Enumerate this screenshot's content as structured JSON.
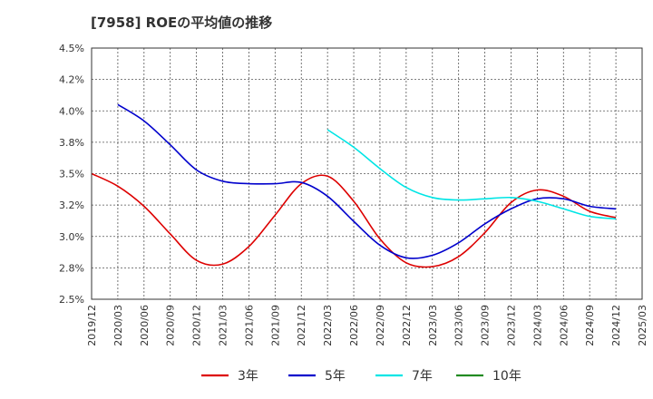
{
  "chart_data": {
    "type": "line",
    "title": "[7958]  ROEの平均値の推移",
    "xlabel": "",
    "ylabel": "",
    "ylim": [
      2.5,
      4.5
    ],
    "y_ticks": [
      "2.5%",
      "2.8%",
      "3.0%",
      "3.2%",
      "3.5%",
      "3.8%",
      "4.0%",
      "4.2%",
      "4.5%"
    ],
    "x_ticks": [
      "2019/12",
      "2020/03",
      "2020/06",
      "2020/09",
      "2020/12",
      "2021/03",
      "2021/06",
      "2021/09",
      "2021/12",
      "2022/03",
      "2022/06",
      "2022/09",
      "2022/12",
      "2023/03",
      "2023/06",
      "2023/09",
      "2023/12",
      "2024/03",
      "2024/06",
      "2024/09",
      "2024/12",
      "2025/03"
    ],
    "grid": true,
    "legend_position": "bottom",
    "series": [
      {
        "name": "3年",
        "color": "#dd0000",
        "points": [
          {
            "x": "2019/12",
            "y": 3.5
          },
          {
            "x": "2020/03",
            "y": 3.4
          },
          {
            "x": "2020/06",
            "y": 3.24
          },
          {
            "x": "2020/09",
            "y": 3.02
          },
          {
            "x": "2020/12",
            "y": 2.81
          },
          {
            "x": "2021/03",
            "y": 2.78
          },
          {
            "x": "2021/06",
            "y": 2.92
          },
          {
            "x": "2021/09",
            "y": 3.17
          },
          {
            "x": "2021/12",
            "y": 3.42
          },
          {
            "x": "2022/03",
            "y": 3.48
          },
          {
            "x": "2022/06",
            "y": 3.28
          },
          {
            "x": "2022/09",
            "y": 2.98
          },
          {
            "x": "2022/12",
            "y": 2.79
          },
          {
            "x": "2023/03",
            "y": 2.76
          },
          {
            "x": "2023/06",
            "y": 2.84
          },
          {
            "x": "2023/09",
            "y": 3.03
          },
          {
            "x": "2023/12",
            "y": 3.27
          },
          {
            "x": "2024/03",
            "y": 3.37
          },
          {
            "x": "2024/06",
            "y": 3.32
          },
          {
            "x": "2024/09",
            "y": 3.2
          },
          {
            "x": "2024/12",
            "y": 3.15
          }
        ]
      },
      {
        "name": "5年",
        "color": "#0000cc",
        "points": [
          {
            "x": "2020/03",
            "y": 4.05
          },
          {
            "x": "2020/06",
            "y": 3.92
          },
          {
            "x": "2020/09",
            "y": 3.73
          },
          {
            "x": "2020/12",
            "y": 3.53
          },
          {
            "x": "2021/03",
            "y": 3.44
          },
          {
            "x": "2021/06",
            "y": 3.42
          },
          {
            "x": "2021/09",
            "y": 3.42
          },
          {
            "x": "2021/12",
            "y": 3.43
          },
          {
            "x": "2022/03",
            "y": 3.32
          },
          {
            "x": "2022/06",
            "y": 3.12
          },
          {
            "x": "2022/09",
            "y": 2.93
          },
          {
            "x": "2022/12",
            "y": 2.83
          },
          {
            "x": "2023/03",
            "y": 2.85
          },
          {
            "x": "2023/06",
            "y": 2.95
          },
          {
            "x": "2023/09",
            "y": 3.1
          },
          {
            "x": "2023/12",
            "y": 3.22
          },
          {
            "x": "2024/03",
            "y": 3.3
          },
          {
            "x": "2024/06",
            "y": 3.3
          },
          {
            "x": "2024/09",
            "y": 3.24
          },
          {
            "x": "2024/12",
            "y": 3.22
          }
        ]
      },
      {
        "name": "7年",
        "color": "#00e5e5",
        "points": [
          {
            "x": "2022/03",
            "y": 3.85
          },
          {
            "x": "2022/06",
            "y": 3.71
          },
          {
            "x": "2022/09",
            "y": 3.54
          },
          {
            "x": "2022/12",
            "y": 3.39
          },
          {
            "x": "2023/03",
            "y": 3.31
          },
          {
            "x": "2023/06",
            "y": 3.29
          },
          {
            "x": "2023/09",
            "y": 3.3
          },
          {
            "x": "2023/12",
            "y": 3.31
          },
          {
            "x": "2024/03",
            "y": 3.28
          },
          {
            "x": "2024/06",
            "y": 3.22
          },
          {
            "x": "2024/09",
            "y": 3.16
          },
          {
            "x": "2024/12",
            "y": 3.14
          }
        ]
      },
      {
        "name": "10年",
        "color": "#228b22",
        "points": []
      }
    ]
  }
}
